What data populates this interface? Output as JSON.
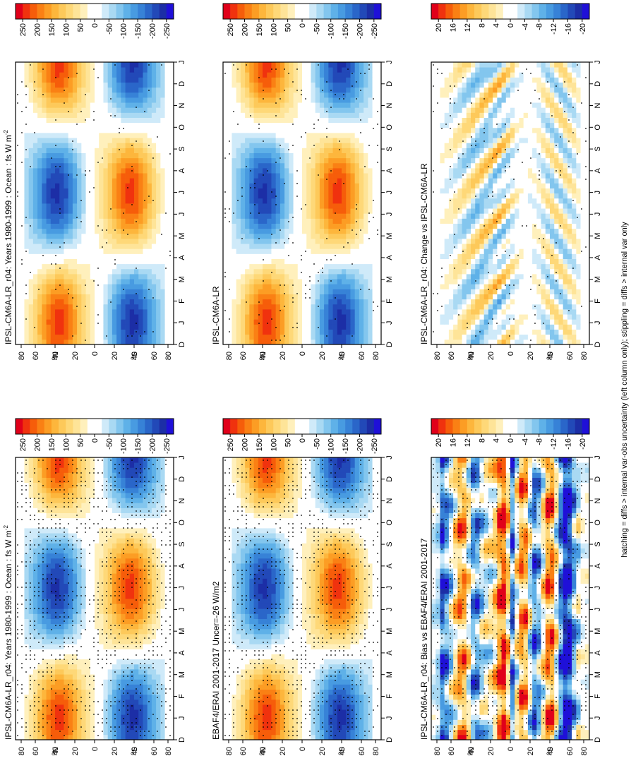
{
  "figure": {
    "footnote": "hatching = diffs > internal var-obs uncertainty (left column only); stippling = diffs > internal var only"
  },
  "chart_data": [
    {
      "type": "heatmap",
      "title": "IPSL-CM6A-LR_r04: Years 1980-1999 : Ocean : fs W m",
      "title_superscript": "-2",
      "x_ticks": [
        "D",
        "J",
        "F",
        "M",
        "A",
        "M",
        "J",
        "J",
        "A",
        "S",
        "O",
        "N",
        "D",
        "J"
      ],
      "y_ticks": [
        "80",
        "60",
        "40",
        "20",
        "0",
        "20",
        "40",
        "60",
        "80"
      ],
      "y_labels": {
        "north": "N",
        "south": "S"
      },
      "colorbar": {
        "ticks": [
          "250",
          "200",
          "150",
          "100",
          "50",
          "0",
          "-50",
          "-100",
          "-150",
          "-200",
          "-250"
        ],
        "range": [
          -275,
          275
        ]
      },
      "pattern": "seasonal",
      "hatch": "left"
    },
    {
      "type": "heatmap",
      "title": "IPSL-CM6A-LR_r04: Years 1980-1999 : Ocean : fs W m",
      "title_superscript": "-2",
      "x_ticks": [
        "D",
        "J",
        "F",
        "M",
        "A",
        "M",
        "J",
        "J",
        "A",
        "S",
        "O",
        "N",
        "D",
        "J"
      ],
      "y_ticks": [
        "80",
        "60",
        "40",
        "20",
        "0",
        "20",
        "40",
        "60",
        "80"
      ],
      "y_labels": {
        "north": "N",
        "south": "S"
      },
      "colorbar": {
        "ticks": [
          "250",
          "200",
          "150",
          "100",
          "50",
          "0",
          "-50",
          "-100",
          "-150",
          "-200",
          "-250"
        ],
        "range": [
          -275,
          275
        ]
      },
      "pattern": "seasonal",
      "hatch": "light"
    },
    {
      "type": "heatmap",
      "title": "EBAF4/ERAI 2001-2017 Uncer=-26 W/m2",
      "x_ticks": [
        "D",
        "J",
        "F",
        "M",
        "A",
        "M",
        "J",
        "J",
        "A",
        "S",
        "O",
        "N",
        "D",
        "J"
      ],
      "y_ticks": [
        "80",
        "60",
        "40",
        "20",
        "0",
        "20",
        "40",
        "60",
        "80"
      ],
      "y_labels": {
        "north": "N",
        "south": "S"
      },
      "colorbar": {
        "ticks": [
          "250",
          "200",
          "150",
          "100",
          "50",
          "0",
          "-50",
          "-100",
          "-150",
          "-200",
          "-250"
        ],
        "range": [
          -275,
          275
        ]
      },
      "pattern": "seasonal",
      "hatch": "left"
    },
    {
      "type": "heatmap",
      "title": "IPSL-CM6A-LR",
      "x_ticks": [
        "D",
        "J",
        "F",
        "M",
        "A",
        "M",
        "J",
        "J",
        "A",
        "S",
        "O",
        "N",
        "D",
        "J"
      ],
      "y_ticks": [
        "80",
        "60",
        "40",
        "20",
        "0",
        "20",
        "40",
        "60",
        "80"
      ],
      "y_labels": {
        "north": "N",
        "south": "S"
      },
      "colorbar": {
        "ticks": [
          "250",
          "200",
          "150",
          "100",
          "50",
          "0",
          "-50",
          "-100",
          "-150",
          "-200",
          "-250"
        ],
        "range": [
          -275,
          275
        ]
      },
      "pattern": "seasonal",
      "hatch": "light"
    },
    {
      "type": "heatmap",
      "title": "IPSL-CM6A-LR_r04: Bias vs EBAF4/ERAI 2001-2017",
      "x_ticks": [
        "D",
        "J",
        "F",
        "M",
        "A",
        "M",
        "J",
        "J",
        "A",
        "S",
        "O",
        "N",
        "D",
        "J"
      ],
      "y_ticks": [
        "80",
        "60",
        "40",
        "20",
        "0",
        "20",
        "40",
        "60",
        "80"
      ],
      "y_labels": {
        "north": "N",
        "south": "S"
      },
      "colorbar": {
        "ticks": [
          "20",
          "16",
          "12",
          "8",
          "4",
          "0",
          "-4",
          "-8",
          "-12",
          "-16",
          "-20"
        ],
        "range": [
          -22,
          22
        ]
      },
      "pattern": "bias",
      "hatch": "left"
    },
    {
      "type": "heatmap",
      "title": "IPSL-CM6A-LR_r04: Change vs IPSL-CM6A-LR",
      "x_ticks": [
        "D",
        "J",
        "F",
        "M",
        "A",
        "M",
        "J",
        "J",
        "A",
        "S",
        "O",
        "N",
        "D",
        "J"
      ],
      "y_ticks": [
        "80",
        "60",
        "40",
        "20",
        "0",
        "20",
        "40",
        "60",
        "80"
      ],
      "y_labels": {
        "north": "N",
        "south": "S"
      },
      "colorbar": {
        "ticks": [
          "20",
          "16",
          "12",
          "8",
          "4",
          "0",
          "-4",
          "-8",
          "-12",
          "-16",
          "-20"
        ],
        "range": [
          -22,
          22
        ]
      },
      "pattern": "change",
      "hatch": "light"
    }
  ]
}
